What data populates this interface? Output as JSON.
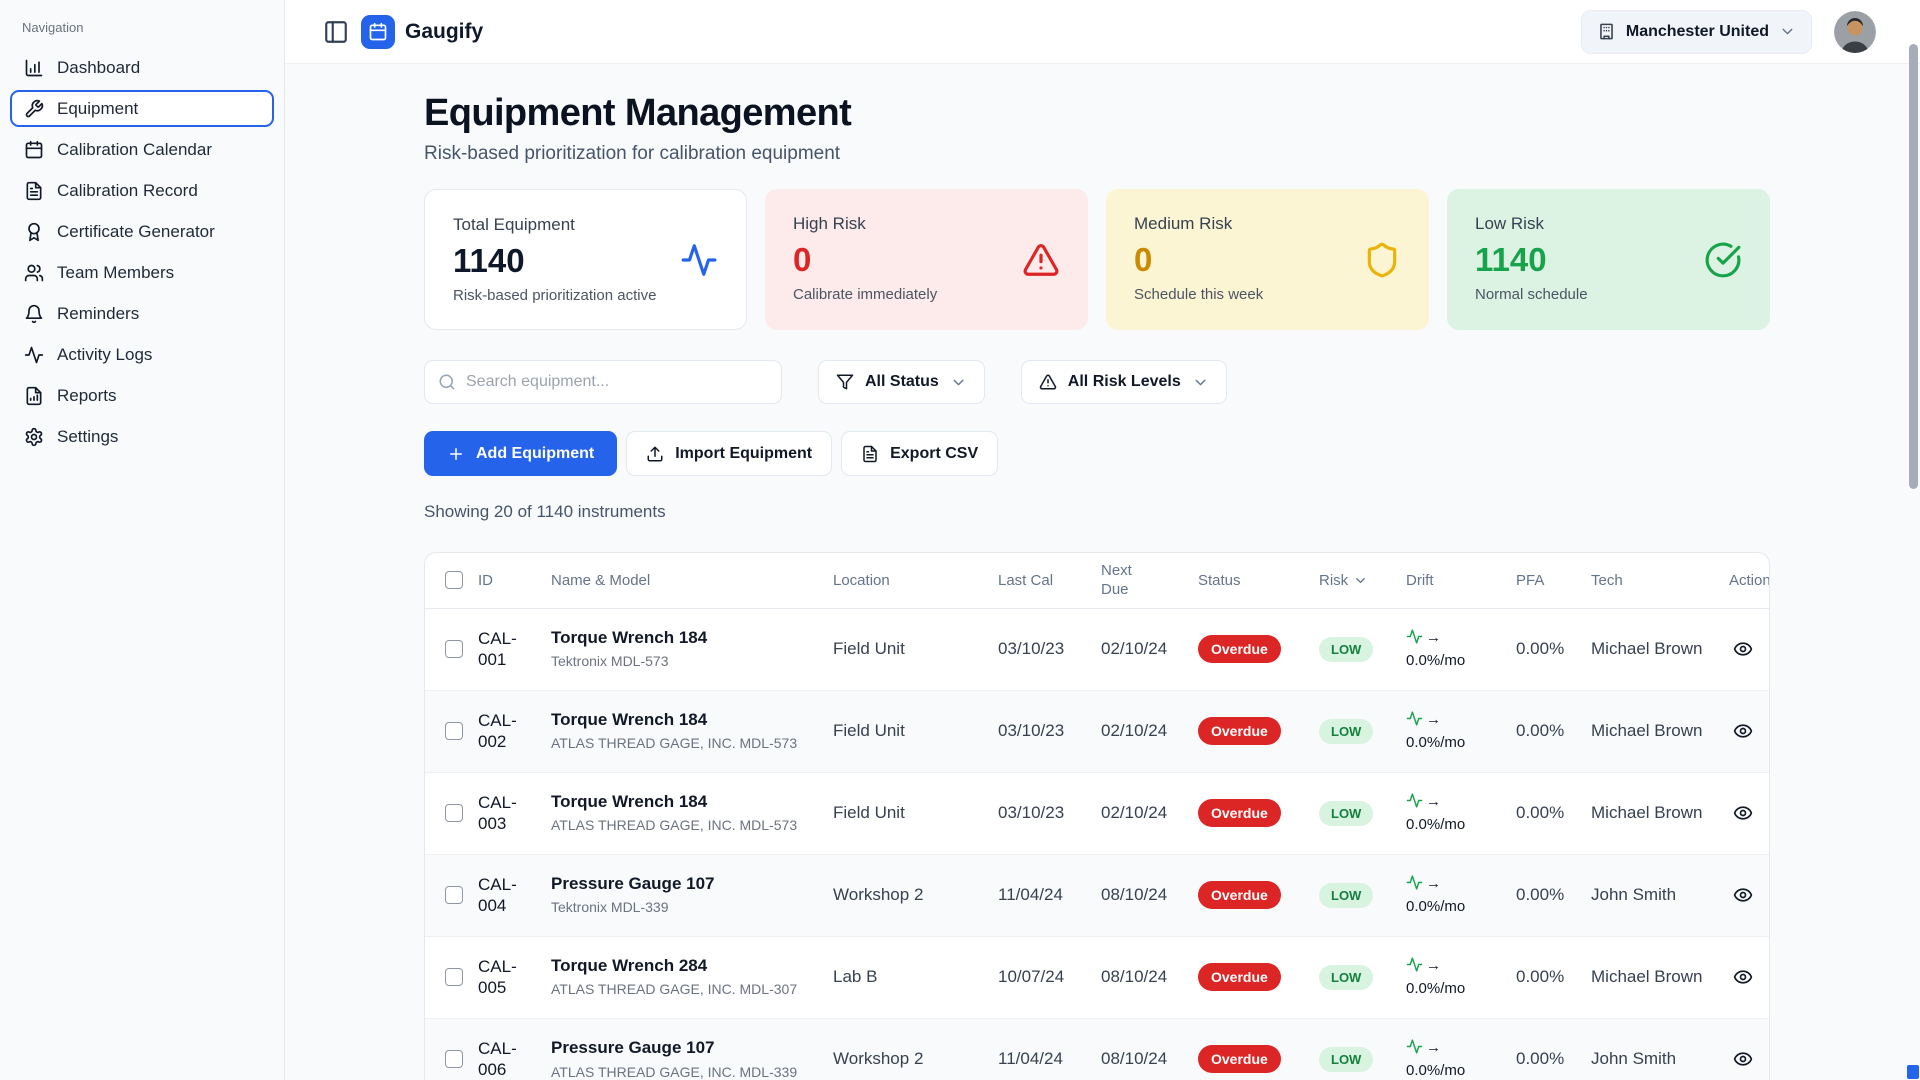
{
  "topbar": {
    "app_name": "Gaugify",
    "org_name": "Manchester United"
  },
  "sidebar": {
    "section_label": "Navigation",
    "items": [
      {
        "label": "Dashboard",
        "icon": "bar-chart",
        "active": false
      },
      {
        "label": "Equipment",
        "icon": "wrench",
        "active": true
      },
      {
        "label": "Calibration Calendar",
        "icon": "calendar",
        "active": false
      },
      {
        "label": "Calibration Record",
        "icon": "file-text",
        "active": false
      },
      {
        "label": "Certificate Generator",
        "icon": "award",
        "active": false
      },
      {
        "label": "Team Members",
        "icon": "users",
        "active": false
      },
      {
        "label": "Reminders",
        "icon": "bell",
        "active": false
      },
      {
        "label": "Activity Logs",
        "icon": "activity",
        "active": false
      },
      {
        "label": "Reports",
        "icon": "file-chart",
        "active": false
      },
      {
        "label": "Settings",
        "icon": "settings",
        "active": false
      }
    ]
  },
  "page": {
    "title": "Equipment Management",
    "subtitle": "Risk-based prioritization for calibration equipment"
  },
  "stats": [
    {
      "label": "Total Equipment",
      "value": "1140",
      "caption": "Risk-based prioritization active",
      "icon": "activity",
      "theme": "white"
    },
    {
      "label": "High Risk",
      "value": "0",
      "caption": "Calibrate immediately",
      "icon": "alert-triangle",
      "theme": "red"
    },
    {
      "label": "Medium Risk",
      "value": "0",
      "caption": "Schedule this week",
      "icon": "shield",
      "theme": "yellow"
    },
    {
      "label": "Low Risk",
      "value": "1140",
      "caption": "Normal schedule",
      "icon": "check-circle",
      "theme": "green"
    }
  ],
  "filters": {
    "search_placeholder": "Search equipment...",
    "status_label": "All Status",
    "risk_label": "All Risk Levels"
  },
  "actions": {
    "add_label": "Add Equipment",
    "import_label": "Import Equipment",
    "export_label": "Export CSV"
  },
  "summary": "Showing 20 of 1140 instruments",
  "table": {
    "columns": [
      "ID",
      "Name & Model",
      "Location",
      "Last Cal",
      "Next Due",
      "Status",
      "Risk",
      "Drift",
      "PFA",
      "Tech",
      "Action"
    ],
    "rows": [
      {
        "id": "CAL-001",
        "name": "Torque Wrench 184",
        "model": "Tektronix MDL-573",
        "location": "Field Unit",
        "last_cal": "03/10/23",
        "next_due": "02/10/24",
        "status": "Overdue",
        "risk": "LOW",
        "drift": "→ 0.0%/mo",
        "pfa": "0.00%",
        "tech": "Michael Brown"
      },
      {
        "id": "CAL-002",
        "name": "Torque Wrench 184",
        "model": "ATLAS THREAD GAGE, INC. MDL-573",
        "location": "Field Unit",
        "last_cal": "03/10/23",
        "next_due": "02/10/24",
        "status": "Overdue",
        "risk": "LOW",
        "drift": "→ 0.0%/mo",
        "pfa": "0.00%",
        "tech": "Michael Brown"
      },
      {
        "id": "CAL-003",
        "name": "Torque Wrench 184",
        "model": "ATLAS THREAD GAGE, INC. MDL-573",
        "location": "Field Unit",
        "last_cal": "03/10/23",
        "next_due": "02/10/24",
        "status": "Overdue",
        "risk": "LOW",
        "drift": "→ 0.0%/mo",
        "pfa": "0.00%",
        "tech": "Michael Brown"
      },
      {
        "id": "CAL-004",
        "name": "Pressure Gauge 107",
        "model": "Tektronix MDL-339",
        "location": "Workshop 2",
        "last_cal": "11/04/24",
        "next_due": "08/10/24",
        "status": "Overdue",
        "risk": "LOW",
        "drift": "→ 0.0%/mo",
        "pfa": "0.00%",
        "tech": "John Smith"
      },
      {
        "id": "CAL-005",
        "name": "Torque Wrench 284",
        "model": "ATLAS THREAD GAGE, INC. MDL-307",
        "location": "Lab B",
        "last_cal": "10/07/24",
        "next_due": "08/10/24",
        "status": "Overdue",
        "risk": "LOW",
        "drift": "→ 0.0%/mo",
        "pfa": "0.00%",
        "tech": "Michael Brown"
      },
      {
        "id": "CAL-006",
        "name": "Pressure Gauge 107",
        "model": "ATLAS THREAD GAGE, INC. MDL-339",
        "location": "Workshop 2",
        "last_cal": "11/04/24",
        "next_due": "08/10/24",
        "status": "Overdue",
        "risk": "LOW",
        "drift": "→ 0.0%/mo",
        "pfa": "0.00%",
        "tech": "John Smith"
      }
    ]
  },
  "colors": {
    "accent_blue": "#2563eb",
    "overdue_red": "#dc2626",
    "high_risk_red": "#dc2626",
    "medium_risk_amber": "#ca8a04",
    "low_risk_green": "#16a34a"
  }
}
